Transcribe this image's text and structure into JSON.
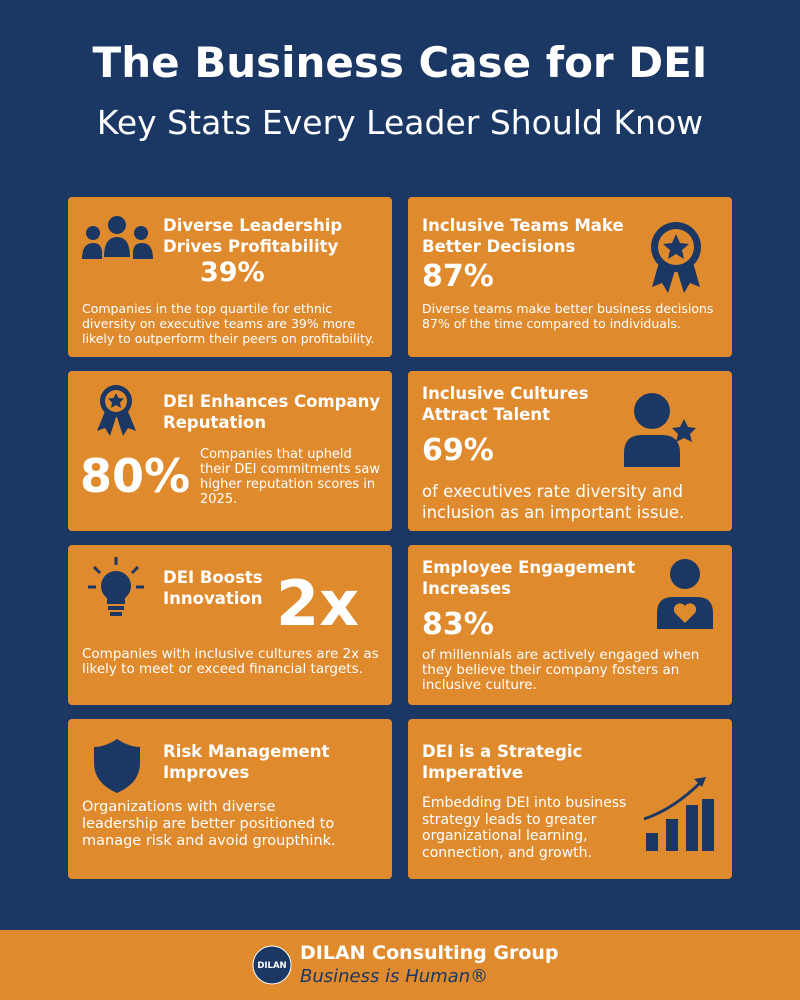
{
  "header": {
    "title": "The Business Case for DEI",
    "subtitle": "Key Stats Every Leader Should Know"
  },
  "cards": [
    {
      "title": "Diverse Leadership Drives Profitability",
      "stat": "39%",
      "text": "Companies in the top quartile for ethnic diversity on executive teams are 39% more likely to outperform their peers on profitability."
    },
    {
      "title": "Inclusive Teams Make Better Decisions",
      "stat": "87%",
      "text": "Diverse teams make better business decisions 87% of the time compared to individuals."
    },
    {
      "title": "DEI Enhances Company Reputation",
      "stat": "80%",
      "text": "Companies that upheld their DEI commitments saw higher reputation scores in 2025."
    },
    {
      "title": "Inclusive Cultures Attract Talent",
      "stat": "69%",
      "text": "of executives rate diversity and inclusion as an important issue."
    },
    {
      "title": "DEI Boosts Innovation",
      "stat": "2x",
      "text": "Companies with inclusive cultures are 2x as likely to meet or exceed financial targets."
    },
    {
      "title": "Employee Engagement Increases",
      "stat": "83%",
      "text": "of millennials are actively engaged when they believe their company fosters an inclusive culture."
    },
    {
      "title": "Risk Management Improves",
      "text": "Organizations with diverse leadership are better positioned to manage risk and avoid groupthink."
    },
    {
      "title": "DEI is a Strategic Imperative",
      "text": "Embedding DEI into business strategy leads to greater organizational learning, connection, and growth."
    }
  ],
  "footer": {
    "logo": "DILAN",
    "company": "DILAN Consulting Group",
    "tagline": "Business is Human®"
  }
}
